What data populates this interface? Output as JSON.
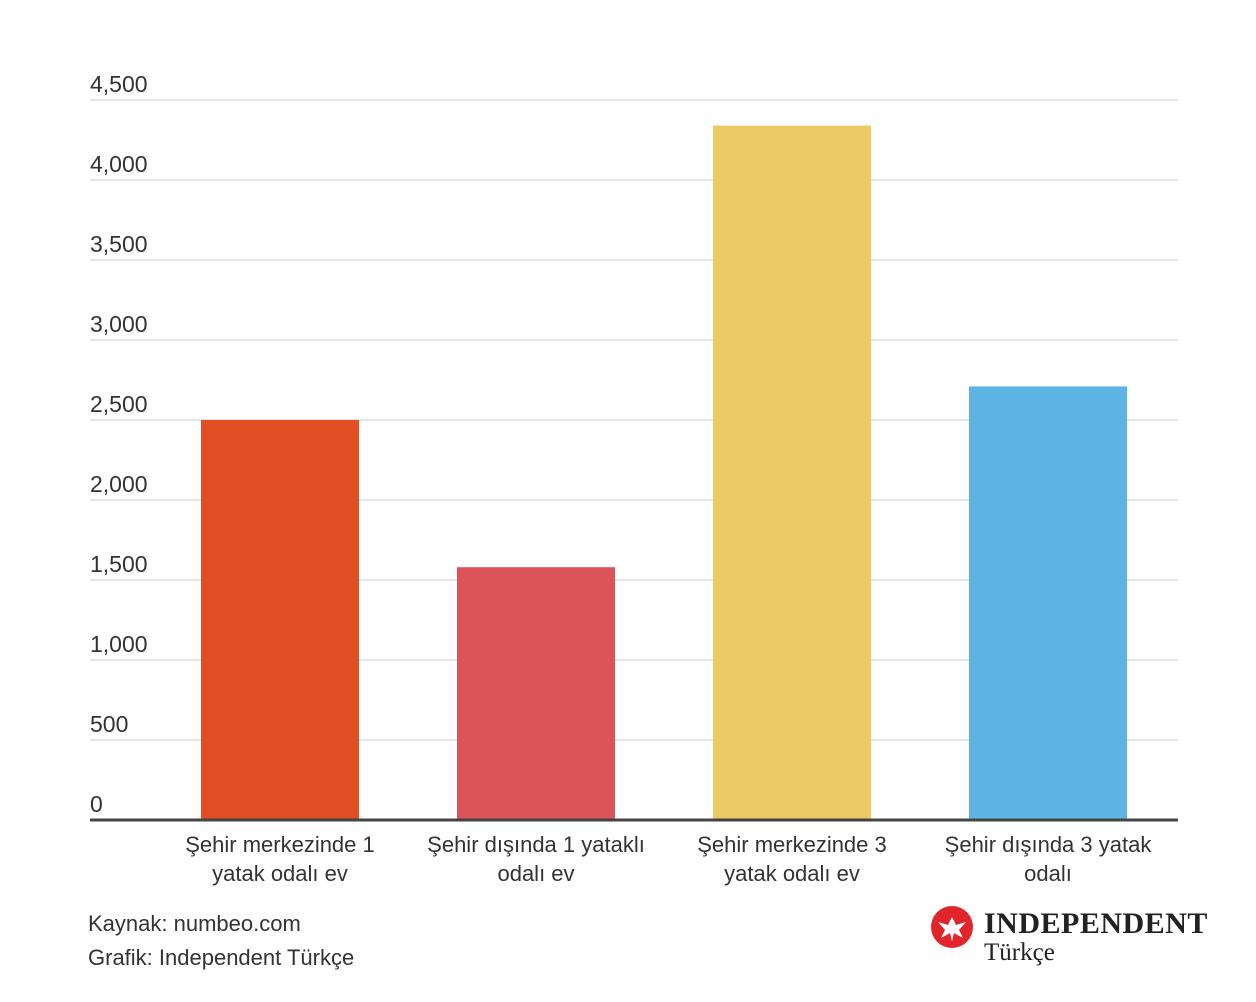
{
  "chart_data": {
    "type": "bar",
    "categories": [
      "Şehir merkezinde 1 yatak odalı ev",
      "Şehir dışında 1 yataklı odalı ev",
      "Şehir merkezinde 3 yatak odalı ev",
      "Şehir dışında 3 yatak odalı"
    ],
    "category_lines": [
      [
        "Şehir merkezinde 1",
        "yatak odalı ev"
      ],
      [
        "Şehir dışında 1 yataklı",
        "odalı ev"
      ],
      [
        "Şehir merkezinde 3",
        "yatak odalı ev"
      ],
      [
        "Şehir dışında 3 yatak",
        "odalı"
      ]
    ],
    "values": [
      2500,
      1580,
      4340,
      2710
    ],
    "colors": [
      "#e24f24",
      "#dc5358",
      "#eccb67",
      "#5db4e3"
    ],
    "ylim": [
      0,
      4500
    ],
    "yticks": [
      0,
      500,
      1000,
      1500,
      2000,
      2500,
      3000,
      3500,
      4000,
      4500
    ],
    "ytick_labels": [
      "0",
      "500",
      "1,000",
      "1,500",
      "2,000",
      "2,500",
      "3,000",
      "3,500",
      "4,000",
      "4,500"
    ],
    "grid": true,
    "title": "",
    "xlabel": "",
    "ylabel": ""
  },
  "footer": {
    "source": "Kaynak: numbeo.com",
    "credit": "Grafik: Independent Türkçe"
  },
  "logo": {
    "name": "INDEPENDENT",
    "sub": "Türkçe"
  },
  "colors": {
    "grid": "#dddddd",
    "axis": "#444444",
    "logo_red": "#e2252b"
  }
}
